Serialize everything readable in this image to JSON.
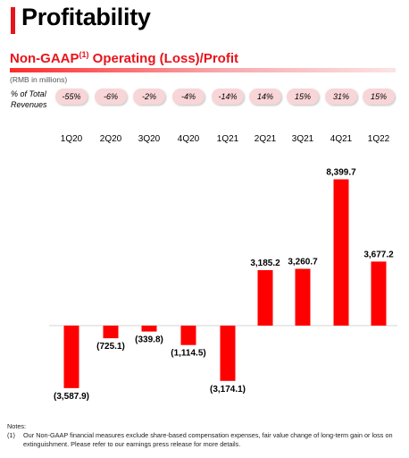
{
  "header": {
    "title": "Profitability",
    "subtitle_main": "Non-GAAP",
    "subtitle_sup": "(1)",
    "subtitle_rest": " Operating (Loss)/Profit",
    "units": "(RMB in millions)"
  },
  "pct_row": {
    "label_line1": "% of Total",
    "label_line2": "Revenues",
    "values": [
      "-55%",
      "-6%",
      "-2%",
      "-4%",
      "-14%",
      "14%",
      "15%",
      "31%",
      "15%"
    ]
  },
  "chart_data": {
    "type": "bar",
    "title": "Non-GAAP(1) Operating (Loss)/Profit",
    "ylabel": "(RMB in millions)",
    "categories": [
      "1Q20",
      "2Q20",
      "3Q20",
      "4Q20",
      "1Q21",
      "2Q21",
      "3Q21",
      "4Q21",
      "1Q22"
    ],
    "values": [
      -3587.9,
      -725.1,
      -339.8,
      -1114.5,
      -3174.1,
      3185.2,
      3260.7,
      8399.7,
      3677.2
    ],
    "value_labels": [
      "(3,587.9)",
      "(725.1)",
      "(339.8)",
      "(1,114.5)",
      "(3,174.1)",
      "3,185.2",
      "3,260.7",
      "8,399.7",
      "3,677.2"
    ],
    "bar_color": "#ff0000",
    "grid": false,
    "legend": "none"
  },
  "notes": {
    "heading": "Notes:",
    "items": [
      {
        "num": "(1)",
        "text": "Our Non-GAAP financial measures exclude share-based compensation expenses, fair value change of long-term gain or loss on extinguishment. Please refer to our earnings press release for more details."
      }
    ]
  }
}
